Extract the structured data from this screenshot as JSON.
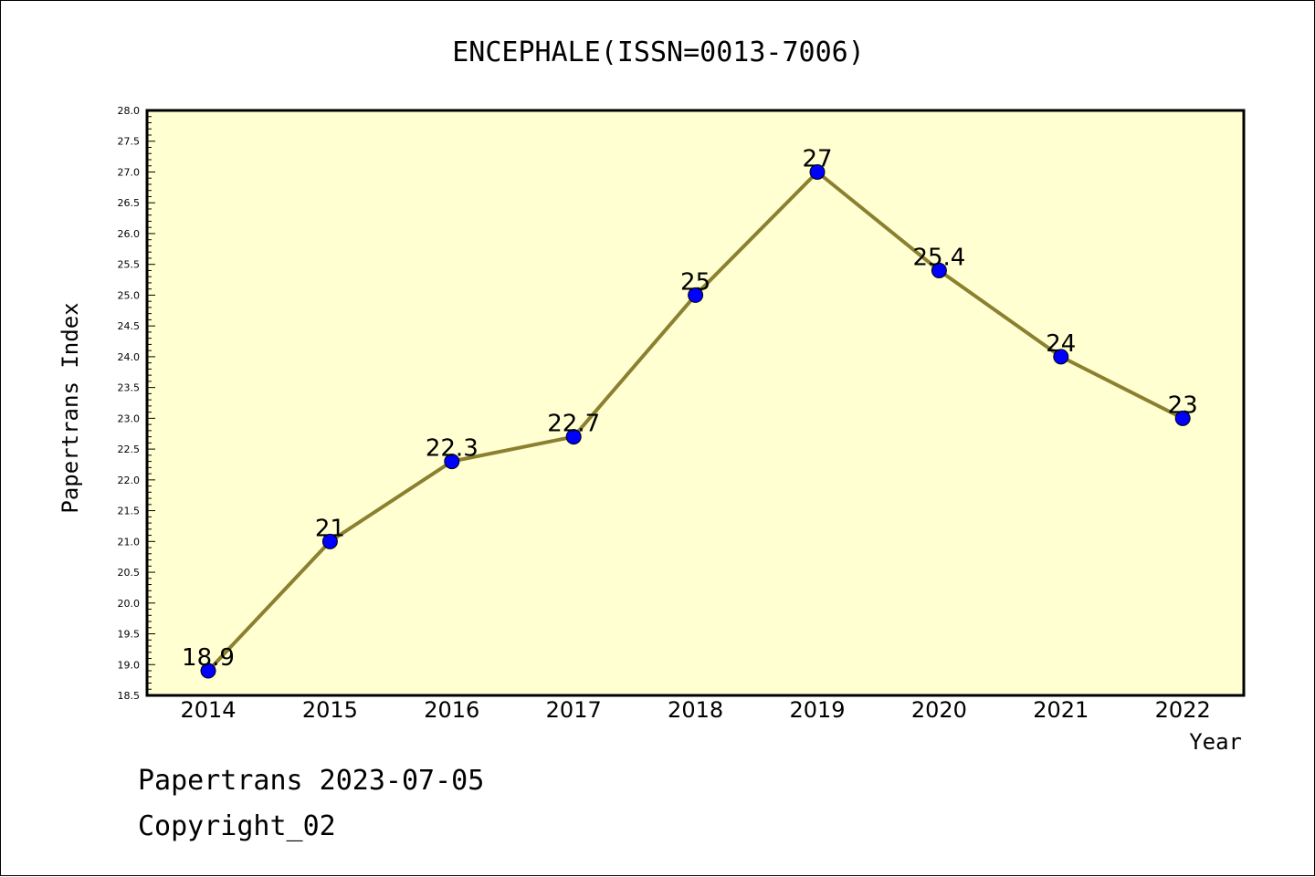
{
  "chart_data": {
    "type": "line",
    "title": "ENCEPHALE(ISSN=0013-7006)",
    "xlabel": "Year",
    "ylabel": "Papertrans Index",
    "categories": [
      "2014",
      "2015",
      "2016",
      "2017",
      "2018",
      "2019",
      "2020",
      "2021",
      "2022"
    ],
    "values": [
      18.9,
      21,
      22.3,
      22.7,
      25,
      27,
      25.4,
      24,
      23
    ],
    "data_labels": [
      "18.9",
      "21",
      "22.3",
      "22.7",
      "25",
      "27",
      "25.4",
      "24",
      "23"
    ],
    "ylim": [
      18.5,
      28.0
    ],
    "yticks": [
      "18.5",
      "19.0",
      "19.5",
      "20.0",
      "20.5",
      "21.0",
      "21.5",
      "22.0",
      "22.5",
      "23.0",
      "23.5",
      "24.0",
      "24.5",
      "25.0",
      "25.5",
      "26.0",
      "26.5",
      "27.0",
      "27.5",
      "28.0"
    ],
    "grid": false,
    "colors": {
      "plot_background": "#ffffd2",
      "line": "#8b8030",
      "marker": "#0000ff"
    }
  },
  "footer": {
    "date_line": "Papertrans 2023-07-05",
    "copyright_line": "Copyright_02"
  }
}
